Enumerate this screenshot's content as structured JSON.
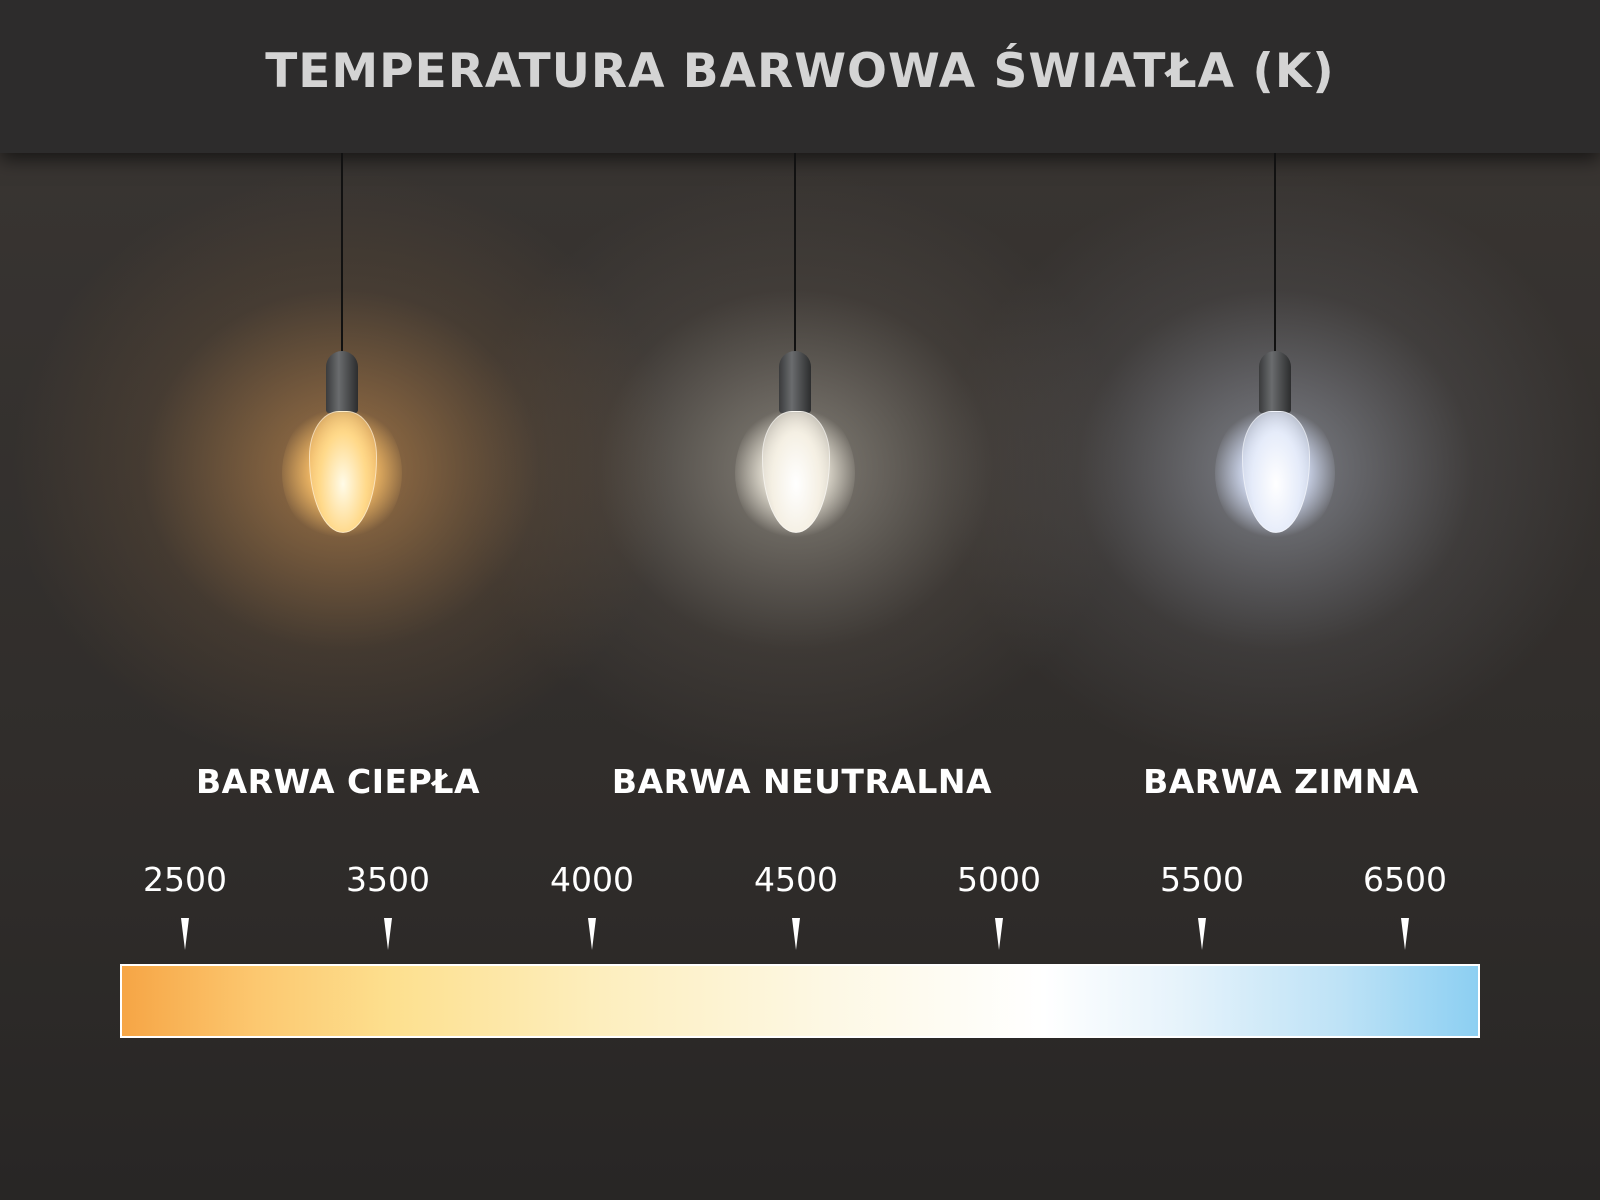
{
  "title": "TEMPERATURA BARWOWA ŚWIATŁA (K)",
  "bulbs": [
    {
      "name": "warm",
      "glow": "#ffc46a",
      "glass": "#fff1c8"
    },
    {
      "name": "neutral",
      "glow": "#f4f0e6",
      "glass": "#fffaf0"
    },
    {
      "name": "cold",
      "glow": "#dfe8ff",
      "glass": "#f2f6ff"
    }
  ],
  "labels": [
    "BARWA CIEPŁA",
    "BARWA NEUTRALNA",
    "BARWA ZIMNA"
  ],
  "scale": {
    "ticks": [
      "2500",
      "3500",
      "4000",
      "4500",
      "5000",
      "5500",
      "6500"
    ],
    "gradient_colors": [
      "#f6a545",
      "#fde08f",
      "#fdf8e4",
      "#ffffff",
      "#8ccff2"
    ]
  }
}
